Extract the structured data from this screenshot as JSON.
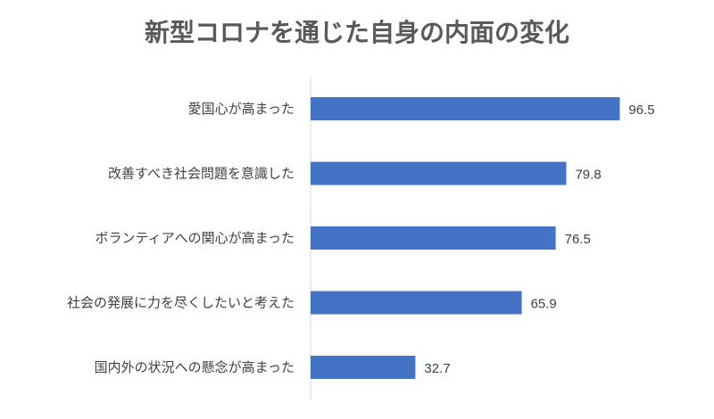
{
  "chart_data": {
    "type": "bar",
    "orientation": "horizontal",
    "title": "新型コロナを通じた自身の内面の変化",
    "categories": [
      "愛国心が高まった",
      "改善すべき社会問題を意識した",
      "ボランティアへの関心が高まった",
      "社会の発展に力を尽くしたいと考えた",
      "国内外の状況への懸念が高まった"
    ],
    "values": [
      96.5,
      79.8,
      76.5,
      65.9,
      32.7
    ],
    "value_labels": [
      "96.5",
      "79.8",
      "76.5",
      "65.9",
      "32.7"
    ],
    "xlim": [
      0,
      100
    ],
    "grid": false,
    "legend": "none",
    "bar_color": "#4472C4",
    "axis_color": "#D9D9D9"
  }
}
